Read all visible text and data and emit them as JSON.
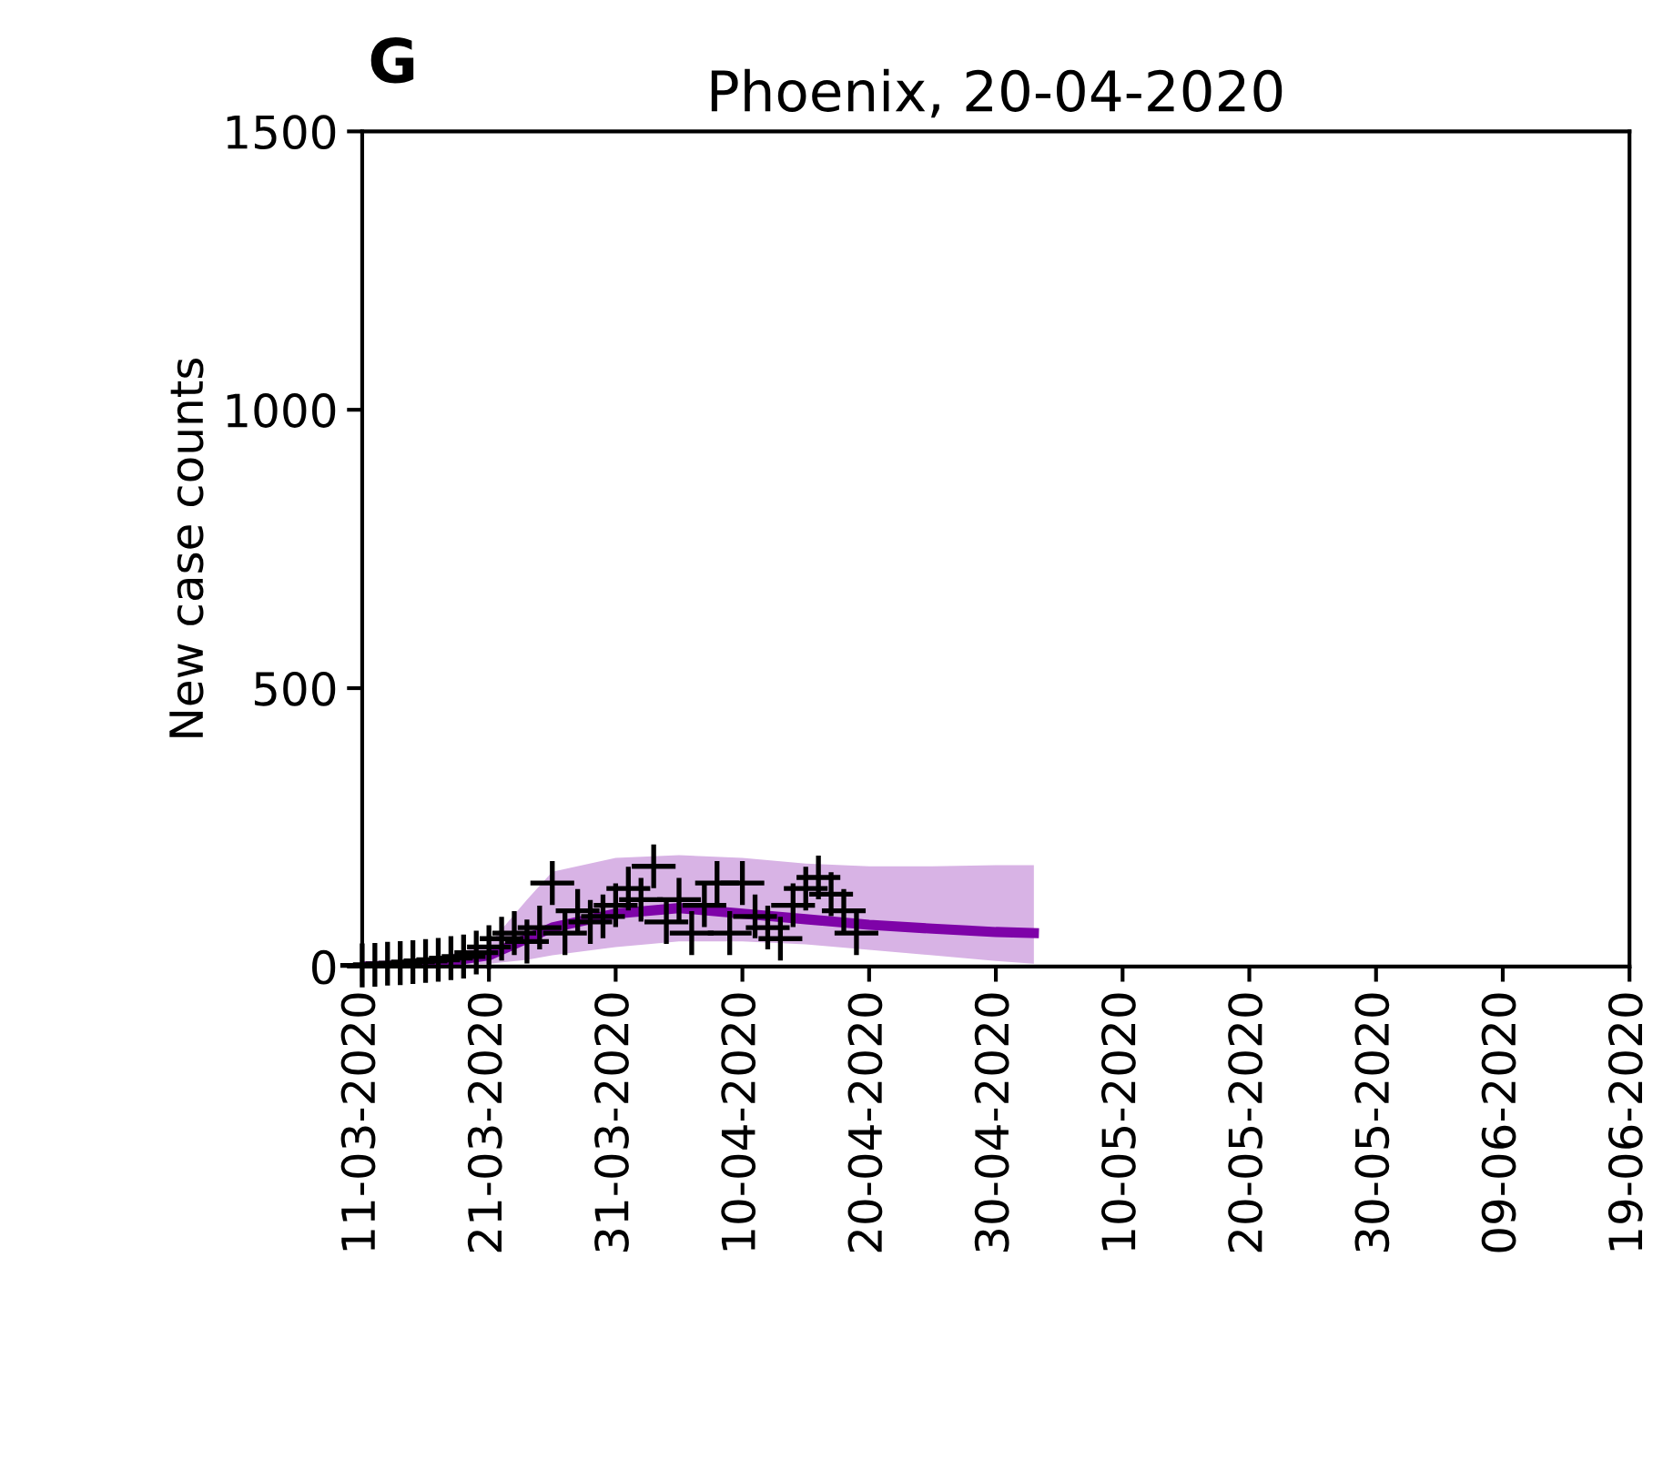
{
  "chart_data": {
    "type": "scatter",
    "title": "Phoenix, 20-04-2020",
    "ylabel": "New case counts",
    "annotations": [
      "G"
    ],
    "xlim": [
      "2020-03-11",
      "2020-06-19"
    ],
    "xticks": [
      {
        "value": "2020-03-11",
        "label": "11-03-2020"
      },
      {
        "value": "2020-03-21",
        "label": "21-03-2020"
      },
      {
        "value": "2020-03-31",
        "label": "31-03-2020"
      },
      {
        "value": "2020-04-10",
        "label": "10-04-2020"
      },
      {
        "value": "2020-04-20",
        "label": "20-04-2020"
      },
      {
        "value": "2020-04-30",
        "label": "30-04-2020"
      },
      {
        "value": "2020-05-10",
        "label": "10-05-2020"
      },
      {
        "value": "2020-05-20",
        "label": "20-05-2020"
      },
      {
        "value": "2020-05-30",
        "label": "30-05-2020"
      },
      {
        "value": "2020-06-09",
        "label": "09-06-2020"
      },
      {
        "value": "2020-06-19",
        "label": "19-06-2020"
      }
    ],
    "ylim": [
      0,
      1500
    ],
    "yticks": [
      0,
      500,
      1000,
      1500
    ],
    "grid": false,
    "legend": false,
    "series": [
      {
        "type": "line",
        "color": "#7e03a8",
        "x": [
          "2020-03-11",
          "2020-03-16",
          "2020-03-21",
          "2020-03-24",
          "2020-03-26",
          "2020-03-31",
          "2020-04-05",
          "2020-04-10",
          "2020-04-15",
          "2020-04-20",
          "2020-04-25",
          "2020-04-30",
          "2020-05-03"
        ],
        "values": [
          0,
          3,
          20,
          50,
          70,
          95,
          105,
          95,
          85,
          75,
          68,
          62,
          60
        ],
        "lower": [
          0,
          0,
          5,
          12,
          20,
          35,
          45,
          45,
          40,
          30,
          20,
          10,
          5
        ],
        "upper": [
          5,
          10,
          40,
          120,
          170,
          195,
          200,
          195,
          185,
          180,
          180,
          182,
          182
        ]
      },
      {
        "color": "#000000",
        "marker": "cross",
        "x": [
          "2020-03-11",
          "2020-03-12",
          "2020-03-13",
          "2020-03-14",
          "2020-03-15",
          "2020-03-16",
          "2020-03-17",
          "2020-03-18",
          "2020-03-19",
          "2020-03-20",
          "2020-03-21",
          "2020-03-22",
          "2020-03-23",
          "2020-03-24",
          "2020-03-25",
          "2020-03-26",
          "2020-03-27",
          "2020-03-28",
          "2020-03-29",
          "2020-03-30",
          "2020-03-31",
          "2020-04-01",
          "2020-04-02",
          "2020-04-03",
          "2020-04-04",
          "2020-04-05",
          "2020-04-06",
          "2020-04-07",
          "2020-04-08",
          "2020-04-09",
          "2020-04-10",
          "2020-04-11",
          "2020-04-12",
          "2020-04-13",
          "2020-04-14",
          "2020-04-15",
          "2020-04-16",
          "2020-04-17",
          "2020-04-18",
          "2020-04-19"
        ],
        "values": [
          2,
          3,
          5,
          6,
          8,
          10,
          12,
          15,
          18,
          25,
          35,
          50,
          60,
          45,
          70,
          150,
          60,
          100,
          80,
          90,
          110,
          140,
          120,
          180,
          80,
          120,
          60,
          110,
          150,
          60,
          150,
          90,
          70,
          50,
          110,
          140,
          160,
          130,
          100,
          60
        ]
      }
    ]
  }
}
